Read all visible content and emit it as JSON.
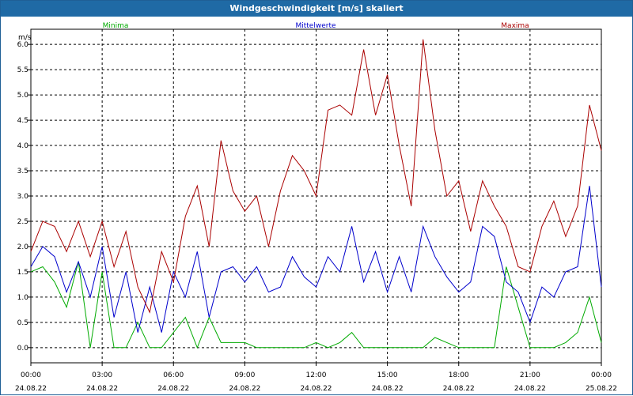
{
  "window": {
    "title": "Windgeschwindigkeit [m/s] skaliert"
  },
  "chart_data": {
    "type": "line",
    "title": "Windgeschwindigkeit [m/s] skaliert",
    "ylabel": "m/s",
    "xlabel": "",
    "xlim_hours": [
      0,
      24
    ],
    "ylim": [
      -0.3,
      6.3
    ],
    "grid": true,
    "legend_placement": "top",
    "y_ticks": [
      "0.0",
      "0.5",
      "1.0",
      "1.5",
      "2.0",
      "2.5",
      "3.0",
      "3.5",
      "4.0",
      "4.5",
      "5.0",
      "5.5",
      "6.0"
    ],
    "x_ticks": [
      {
        "time": "00:00",
        "date": "24.08.22"
      },
      {
        "time": "03:00",
        "date": "24.08.22"
      },
      {
        "time": "06:00",
        "date": "24.08.22"
      },
      {
        "time": "09:00",
        "date": "24.08.22"
      },
      {
        "time": "12:00",
        "date": "24.08.22"
      },
      {
        "time": "15:00",
        "date": "24.08.22"
      },
      {
        "time": "18:00",
        "date": "24.08.22"
      },
      {
        "time": "21:00",
        "date": "24.08.22"
      },
      {
        "time": "00:00",
        "date": "25.08.22"
      }
    ],
    "x_hours": [
      0.0,
      0.5,
      1.0,
      1.5,
      2.0,
      2.5,
      3.0,
      3.5,
      4.0,
      4.5,
      5.0,
      5.5,
      6.0,
      6.5,
      7.0,
      7.5,
      8.0,
      8.5,
      9.0,
      9.5,
      10.0,
      10.5,
      11.0,
      11.5,
      12.0,
      12.5,
      13.0,
      13.5,
      14.0,
      14.5,
      15.0,
      15.5,
      16.0,
      16.5,
      17.0,
      17.5,
      18.0,
      18.5,
      19.0,
      19.5,
      20.0,
      20.5,
      21.0,
      21.5,
      22.0,
      22.5,
      23.0,
      23.5,
      24.0
    ],
    "series": [
      {
        "name": "Minima",
        "color": "#00aa00",
        "values": [
          1.5,
          1.6,
          1.3,
          0.8,
          1.7,
          0.0,
          1.5,
          0.0,
          0.0,
          0.5,
          0.0,
          0.0,
          0.3,
          0.6,
          0.0,
          0.6,
          0.1,
          0.1,
          0.1,
          0.0,
          0.0,
          0.0,
          0.0,
          0.0,
          0.1,
          0.0,
          0.1,
          0.3,
          0.0,
          0.0,
          0.0,
          0.0,
          0.0,
          0.0,
          0.2,
          0.1,
          0.0,
          0.0,
          0.0,
          0.0,
          1.6,
          0.8,
          0.0,
          0.0,
          0.0,
          0.1,
          0.3,
          1.0,
          0.1
        ]
      },
      {
        "name": "Mittelwerte",
        "color": "#0000cc",
        "values": [
          1.6,
          2.0,
          1.8,
          1.1,
          1.7,
          1.0,
          2.0,
          0.6,
          1.5,
          0.3,
          1.2,
          0.3,
          1.5,
          1.0,
          1.9,
          0.6,
          1.5,
          1.6,
          1.3,
          1.6,
          1.1,
          1.2,
          1.8,
          1.4,
          1.2,
          1.8,
          1.5,
          2.4,
          1.3,
          1.9,
          1.1,
          1.8,
          1.1,
          2.4,
          1.8,
          1.4,
          1.1,
          1.3,
          2.4,
          2.2,
          1.3,
          1.1,
          0.5,
          1.2,
          1.0,
          1.5,
          1.6,
          3.2,
          1.2
        ]
      },
      {
        "name": "Maxima",
        "color": "#aa0000",
        "values": [
          1.9,
          2.5,
          2.4,
          1.9,
          2.5,
          1.8,
          2.5,
          1.6,
          2.3,
          1.2,
          0.7,
          1.9,
          1.3,
          2.6,
          3.2,
          2.0,
          4.1,
          3.1,
          2.7,
          3.0,
          2.0,
          3.1,
          3.8,
          3.5,
          3.0,
          4.7,
          4.8,
          4.6,
          5.9,
          4.6,
          5.4,
          4.0,
          2.8,
          6.1,
          4.3,
          3.0,
          3.3,
          2.3,
          3.3,
          2.8,
          2.4,
          1.6,
          1.5,
          2.4,
          2.9,
          2.2,
          2.8,
          4.8,
          3.9
        ]
      }
    ]
  }
}
